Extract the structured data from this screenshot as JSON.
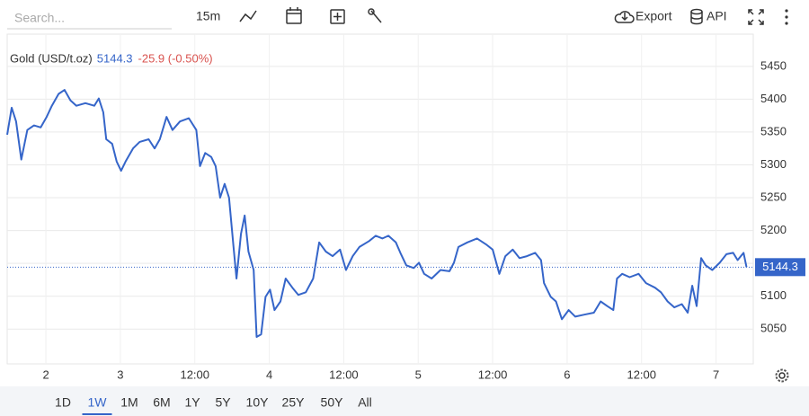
{
  "toolbar": {
    "search_placeholder": "Search...",
    "interval": "15m",
    "export": "Export",
    "api": "API"
  },
  "range_buttons": [
    "1D",
    "1W",
    "1M",
    "6M",
    "1Y",
    "5Y",
    "10Y",
    "25Y",
    "50Y",
    "All"
  ],
  "selected_range": "1W",
  "chart_data": {
    "type": "line",
    "last_value": 5144.3,
    "change": "-25.9 (-0.50%)",
    "series": [
      {
        "name": "Gold (USD/t.oz)",
        "color": "#3565c9",
        "values": [
          5346,
          5387,
          5366,
          5308,
          5353,
          5360,
          5357,
          5373,
          5390,
          5408,
          5414,
          5398,
          5390,
          5394,
          5390,
          5401,
          5380,
          5339,
          5332,
          5305,
          5291,
          5305,
          5325,
          5335,
          5339,
          5325,
          5339,
          5373,
          5353,
          5366,
          5371,
          5353,
          5298,
          5318,
          5312,
          5298,
          5250,
          5271,
          5250,
          5175,
          5127,
          5195,
          5223,
          5168,
          5140,
          5038,
          5042,
          5099,
          5110,
          5079,
          5092,
          5127,
          5113,
          5102,
          5106,
          5127,
          5182,
          5168,
          5161,
          5171,
          5140,
          5161,
          5175,
          5184,
          5192,
          5188,
          5192,
          5182,
          5166,
          5147,
          5143,
          5151,
          5134,
          5127,
          5140,
          5138,
          5151,
          5175,
          5182,
          5188,
          5179,
          5171,
          5134,
          5161,
          5171,
          5158,
          5161,
          5166,
          5155,
          5120,
          5099,
          5092,
          5065,
          5079,
          5069,
          5072,
          5075,
          5092,
          5085,
          5079,
          5127,
          5134,
          5129,
          5134,
          5120,
          5113,
          5106,
          5092,
          5083,
          5088,
          5075,
          5116,
          5085,
          5158,
          5147,
          5140,
          5151,
          5164,
          5166,
          5155,
          5166,
          5144.3
        ]
      }
    ],
    "x": [
      -0.52,
      -0.46,
      -0.4,
      -0.33,
      -0.25,
      -0.16,
      -0.07,
      0.01,
      0.08,
      0.17,
      0.25,
      0.33,
      0.41,
      0.53,
      0.65,
      0.71,
      0.77,
      0.81,
      0.89,
      0.95,
      1.01,
      1.07,
      1.17,
      1.26,
      1.38,
      1.46,
      1.53,
      1.62,
      1.7,
      1.8,
      1.92,
      2.02,
      2.07,
      2.14,
      2.22,
      2.28,
      2.34,
      2.4,
      2.46,
      2.52,
      2.56,
      2.62,
      2.67,
      2.72,
      2.79,
      2.83,
      2.89,
      2.95,
      3.01,
      3.07,
      3.15,
      3.22,
      3.31,
      3.39,
      3.49,
      3.59,
      3.67,
      3.76,
      3.85,
      3.95,
      4.03,
      4.12,
      4.21,
      4.34,
      4.43,
      4.52,
      4.6,
      4.7,
      4.76,
      4.84,
      4.94,
      5.01,
      5.08,
      5.18,
      5.3,
      5.42,
      5.48,
      5.54,
      5.66,
      5.79,
      5.91,
      6.0,
      6.09,
      6.17,
      6.27,
      6.36,
      6.46,
      6.57,
      6.65,
      6.69,
      6.78,
      6.85,
      6.93,
      7.02,
      7.11,
      7.23,
      7.36,
      7.45,
      7.54,
      7.62,
      7.67,
      7.74,
      7.84,
      7.96,
      8.06,
      8.18,
      8.26,
      8.35,
      8.44,
      8.54,
      8.62,
      8.68,
      8.74,
      8.8,
      8.86,
      8.95,
      9.05,
      9.14,
      9.23,
      9.29,
      9.37,
      9.41
    ],
    "xlim": [
      -0.52,
      9.5
    ],
    "xticks": [
      {
        "value": 0,
        "label": "2"
      },
      {
        "value": 1,
        "label": "3"
      },
      {
        "value": 2,
        "label": "12:00"
      },
      {
        "value": 3,
        "label": "4"
      },
      {
        "value": 4,
        "label": "12:00"
      },
      {
        "value": 5,
        "label": "5"
      },
      {
        "value": 6,
        "label": "12:00"
      },
      {
        "value": 7,
        "label": "6"
      },
      {
        "value": 8,
        "label": "12:00"
      },
      {
        "value": 9,
        "label": "7"
      }
    ],
    "ylim": [
      4997,
      5499
    ],
    "yticks": [
      5050,
      5100,
      5150,
      5200,
      5250,
      5300,
      5350,
      5400,
      5450
    ],
    "grid": true
  }
}
